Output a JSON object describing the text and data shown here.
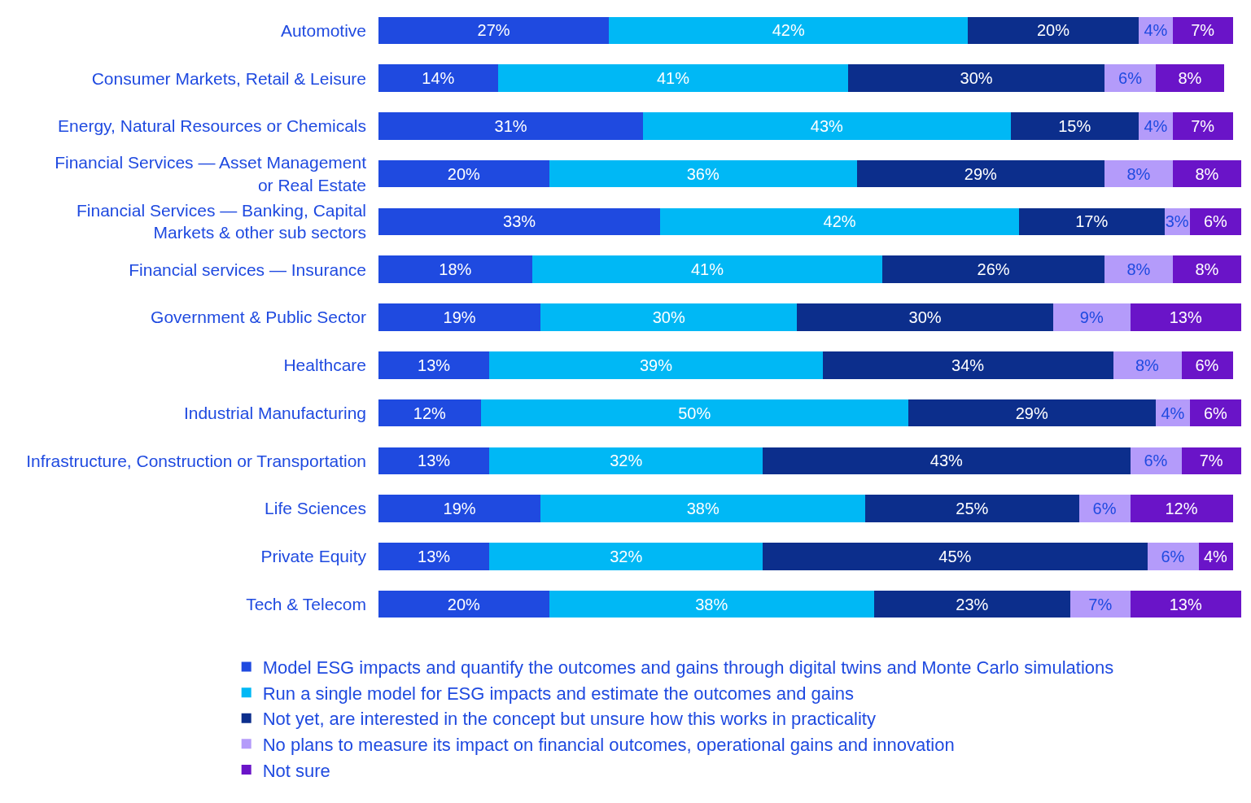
{
  "chart_data": {
    "type": "bar",
    "orientation": "horizontal",
    "stacked": true,
    "legend": "bottom",
    "tick_labels": "y",
    "categories": [
      "Automotive",
      "Consumer Markets, Retail & Leisure",
      "Energy, Natural Resources or Chemicals",
      "Financial Services — Asset Management\nor Real Estate",
      "Financial Services — Banking, Capital\nMarkets & other sub sectors",
      "Financial services — Insurance",
      "Government & Public Sector",
      "Healthcare",
      "Industrial Manufacturing",
      "Infrastructure, Construction or Transportation",
      "Life Sciences",
      "Private Equity",
      "Tech & Telecom"
    ],
    "series": [
      {
        "name": "Model ESG impacts and quantify the outcomes and gains through digital twins and Monte Carlo simulations",
        "color": "#1f4ae0",
        "values": [
          27,
          14,
          31,
          20,
          33,
          18,
          19,
          13,
          12,
          13,
          19,
          13,
          20
        ],
        "value_labels": [
          "27%",
          "14%",
          "31%",
          "20%",
          "33%",
          "18%",
          "19%",
          "13%",
          "12%",
          "13%",
          "19%",
          "13%",
          "20%"
        ]
      },
      {
        "name": "Run a single model for ESG impacts and estimate the outcomes and gains",
        "color": "#00b8f5",
        "values": [
          42,
          41,
          43,
          36,
          42,
          41,
          30,
          39,
          50,
          32,
          38,
          32,
          38
        ],
        "value_labels": [
          "42%",
          "41%",
          "43%",
          "36%",
          "42%",
          "41%",
          "30%",
          "39%",
          "50%",
          "32%",
          "38%",
          "32%",
          "38%"
        ]
      },
      {
        "name": "Not yet, are interested in the concept but unsure how this works in practicality",
        "color": "#0c2e8c",
        "values": [
          20,
          30,
          15,
          29,
          17,
          26,
          30,
          34,
          29,
          43,
          25,
          45,
          23
        ],
        "value_labels": [
          "20%",
          "30%",
          "15%",
          "29%",
          "17%",
          "26%",
          "30%",
          "34%",
          "29%",
          "43%",
          "25%",
          "45%",
          "23%"
        ]
      },
      {
        "name": "No plans to measure its impact on financial outcomes, operational gains and innovation",
        "color": "#b49bfa",
        "values": [
          4,
          6,
          4,
          8,
          3,
          8,
          9,
          8,
          4,
          6,
          6,
          6,
          7
        ],
        "value_labels": [
          "4%",
          "6%",
          "4%",
          "8%",
          "3%",
          "8%",
          "9%",
          "8%",
          "4%",
          "6%",
          "6%",
          "6%",
          "7%"
        ]
      },
      {
        "name": "Not sure",
        "color": "#6a14c8",
        "values": [
          7,
          8,
          7,
          8,
          6,
          8,
          13,
          6,
          6,
          7,
          12,
          4,
          13
        ],
        "value_labels": [
          "7%",
          "8%",
          "7%",
          "8%",
          "6%",
          "8%",
          "13%",
          "6%",
          "6%",
          "7%",
          "12%",
          "4%",
          "13%"
        ]
      }
    ]
  }
}
